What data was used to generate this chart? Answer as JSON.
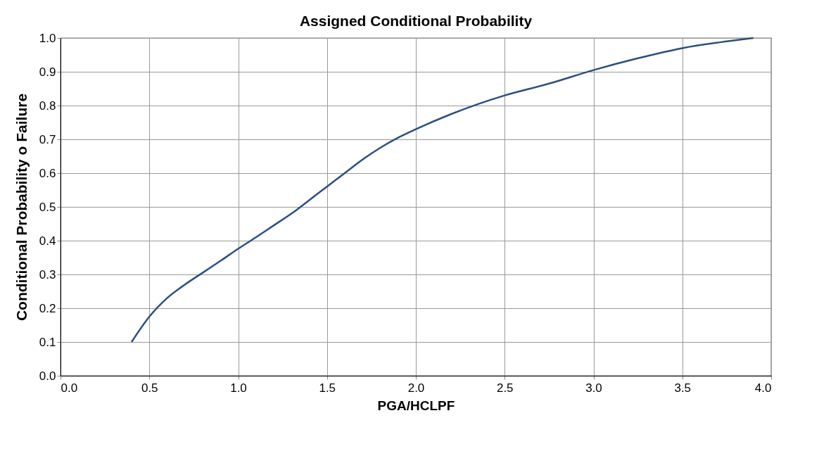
{
  "chart_data": {
    "type": "line",
    "title": "Assigned Conditional Probability",
    "xlabel": "PGA/HCLPF",
    "ylabel": "Conditional  Probability  o Failure",
    "x": [
      0.4,
      0.5,
      0.6,
      0.7,
      0.8,
      0.9,
      1.0,
      1.1,
      1.2,
      1.3,
      1.4,
      1.5,
      1.6,
      1.7,
      1.8,
      1.9,
      2.0,
      2.2,
      2.5,
      2.75,
      3.0,
      3.25,
      3.5,
      3.75,
      3.9
    ],
    "series": [
      {
        "color": "#2b4f7f",
        "values": [
          0.1,
          0.175,
          0.23,
          0.27,
          0.305,
          0.34,
          0.376,
          0.41,
          0.445,
          0.48,
          0.52,
          0.56,
          0.6,
          0.64,
          0.675,
          0.705,
          0.73,
          0.775,
          0.83,
          0.865,
          0.905,
          0.94,
          0.97,
          0.99,
          1.0
        ]
      }
    ],
    "xlim": [
      0.0,
      4.0
    ],
    "ylim": [
      0.0,
      1.0
    ],
    "xticks": [
      {
        "value": 0,
        "label": "0.0"
      },
      0.5,
      {
        "value": 1,
        "label": "1.0"
      },
      1.5,
      {
        "value": 2,
        "label": "2.0"
      },
      2.5,
      {
        "value": 3,
        "label": "3.0"
      },
      3.5,
      {
        "value": 4,
        "label": "4.0"
      }
    ],
    "yticks": [
      {
        "value": 0,
        "label": "0.0"
      },
      0.1,
      0.2,
      0.3,
      0.4,
      0.5,
      0.6,
      0.7,
      0.8,
      0.9,
      {
        "value": 1,
        "label": "1.0"
      }
    ],
    "grid": true,
    "marker": "none",
    "line_style": "solid"
  }
}
